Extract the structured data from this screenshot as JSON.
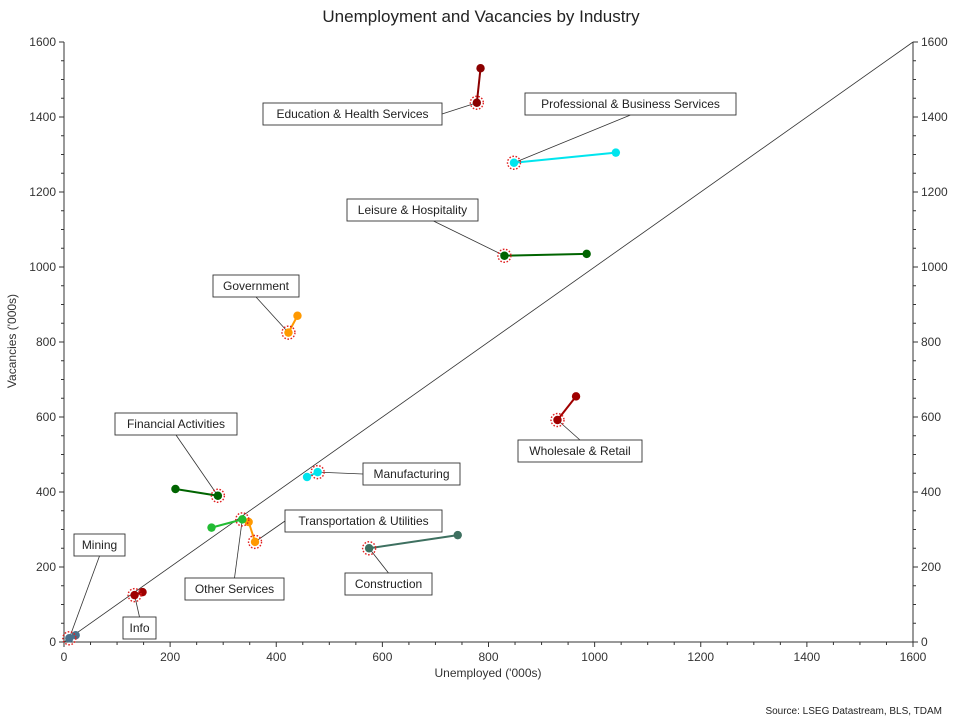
{
  "chart_data": {
    "type": "scatter",
    "title": "Unemployment and Vacancies by Industry",
    "xlabel": "Unemployed ('000s)",
    "ylabel": "Vacancies ('000s)",
    "source": "Source: LSEG Datastream, BLS, TDAM",
    "xlim": [
      0,
      1600
    ],
    "ylim": [
      0,
      1600
    ],
    "xticks": [
      0,
      200,
      400,
      600,
      800,
      1000,
      1200,
      1400,
      1600
    ],
    "yticks": [
      0,
      200,
      400,
      600,
      800,
      1000,
      1200,
      1400,
      1600
    ],
    "reference_line": {
      "from": [
        0,
        0
      ],
      "to": [
        1600,
        1600
      ]
    },
    "grid": false,
    "series": [
      {
        "name": "Education & Health Services",
        "color": "#8b0000",
        "start": [
          785,
          1530
        ],
        "end": [
          778,
          1438
        ]
      },
      {
        "name": "Professional & Business Services",
        "color": "#00e5ee",
        "start": [
          1040,
          1305
        ],
        "end": [
          848,
          1278
        ]
      },
      {
        "name": "Leisure & Hospitality",
        "color": "#006400",
        "start": [
          985,
          1035
        ],
        "end": [
          830,
          1030
        ]
      },
      {
        "name": "Government",
        "color": "#ff9900",
        "start": [
          440,
          870
        ],
        "end": [
          423,
          825
        ]
      },
      {
        "name": "Wholesale & Retail",
        "color": "#a00000",
        "start": [
          965,
          655
        ],
        "end": [
          930,
          592
        ]
      },
      {
        "name": "Financial Activities",
        "color": "#006400",
        "start": [
          210,
          408
        ],
        "end": [
          290,
          390
        ]
      },
      {
        "name": "Manufacturing",
        "color": "#00e5ee",
        "start": [
          458,
          440
        ],
        "end": [
          478,
          453
        ]
      },
      {
        "name": "Transportation & Utilities",
        "color": "#ff9900",
        "start": [
          348,
          320
        ],
        "end": [
          360,
          267
        ]
      },
      {
        "name": "Other Services",
        "color": "#22bb33",
        "start": [
          278,
          305
        ],
        "end": [
          336,
          327
        ]
      },
      {
        "name": "Construction",
        "color": "#3e7060",
        "start": [
          742,
          285
        ],
        "end": [
          575,
          250
        ]
      },
      {
        "name": "Mining",
        "color": "#4a708b",
        "start": [
          22,
          18
        ],
        "end": [
          10,
          10
        ]
      },
      {
        "name": "Info",
        "color": "#a00000",
        "start": [
          148,
          133
        ],
        "end": [
          133,
          125
        ]
      }
    ],
    "annotations": [
      {
        "text": "Education & Health Services",
        "target": [
          778,
          1438
        ]
      },
      {
        "text": "Professional & Business Services",
        "target": [
          848,
          1278
        ]
      },
      {
        "text": "Leisure & Hospitality",
        "target": [
          830,
          1030
        ]
      },
      {
        "text": "Government",
        "target": [
          423,
          825
        ]
      },
      {
        "text": "Wholesale & Retail",
        "target": [
          930,
          592
        ]
      },
      {
        "text": "Financial Activities",
        "target": [
          290,
          390
        ]
      },
      {
        "text": "Manufacturing",
        "target": [
          478,
          453
        ]
      },
      {
        "text": "Transportation & Utilities",
        "target": [
          360,
          267
        ]
      },
      {
        "text": "Other Services",
        "target": [
          336,
          327
        ]
      },
      {
        "text": "Construction",
        "target": [
          575,
          250
        ]
      },
      {
        "text": "Mining",
        "target": [
          10,
          10
        ]
      },
      {
        "text": "Info",
        "target": [
          133,
          125
        ]
      }
    ]
  }
}
